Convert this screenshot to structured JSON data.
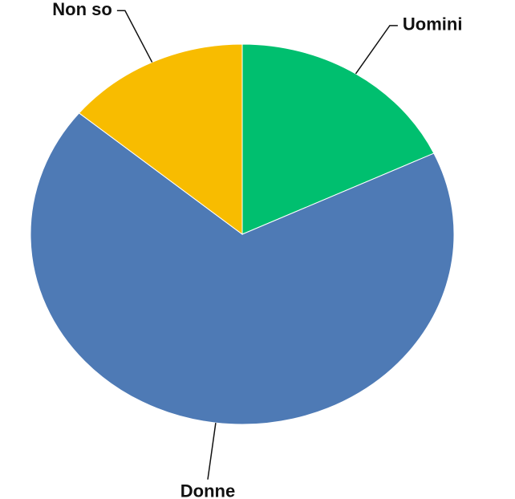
{
  "chart_data": {
    "type": "pie",
    "categories": [
      "Uomini",
      "Donne",
      "Non so"
    ],
    "values": [
      18,
      68,
      14
    ],
    "colors": [
      "#00bf6f",
      "#4e7ab5",
      "#f8bc00"
    ]
  }
}
